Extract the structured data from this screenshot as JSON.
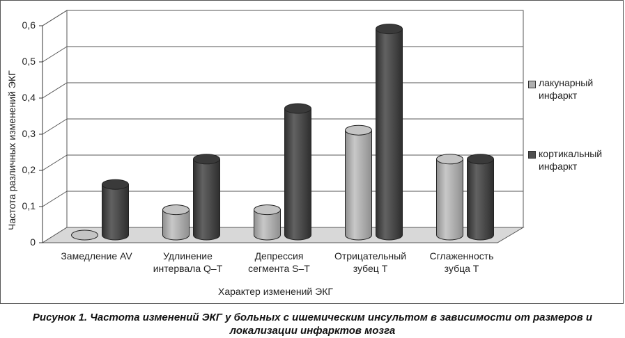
{
  "chart_data": {
    "type": "bar",
    "title": "",
    "xlabel": "Характер изменений ЭКГ",
    "ylabel": "Частота различных изменений ЭКГ",
    "ylim": [
      0,
      0.6
    ],
    "yticks": [
      "0",
      "0,1",
      "0,2",
      "0,3",
      "0,4",
      "0,5",
      "0,6"
    ],
    "categories": [
      "Замедление AV",
      "Удлинение\nинтервала Q–T",
      "Депрессия\nсегмента  S–T",
      "Отрицательный\nзубец Т",
      "Сглаженность\nзубца Т"
    ],
    "series": [
      {
        "name": "лакунарный\nинфаркт",
        "values": [
          0.0,
          0.07,
          0.07,
          0.29,
          0.21
        ],
        "color": "#b0b0b0"
      },
      {
        "name": "кортикальный\nинфаркт",
        "values": [
          0.14,
          0.21,
          0.35,
          0.57,
          0.21
        ],
        "color": "#505050"
      }
    ],
    "grid": true,
    "legend": "right"
  },
  "caption": "Рисунок 1. Частота изменений ЭКГ у больных с ишемическим инсультом в зависимости от размеров и локализации инфарктов мозга"
}
